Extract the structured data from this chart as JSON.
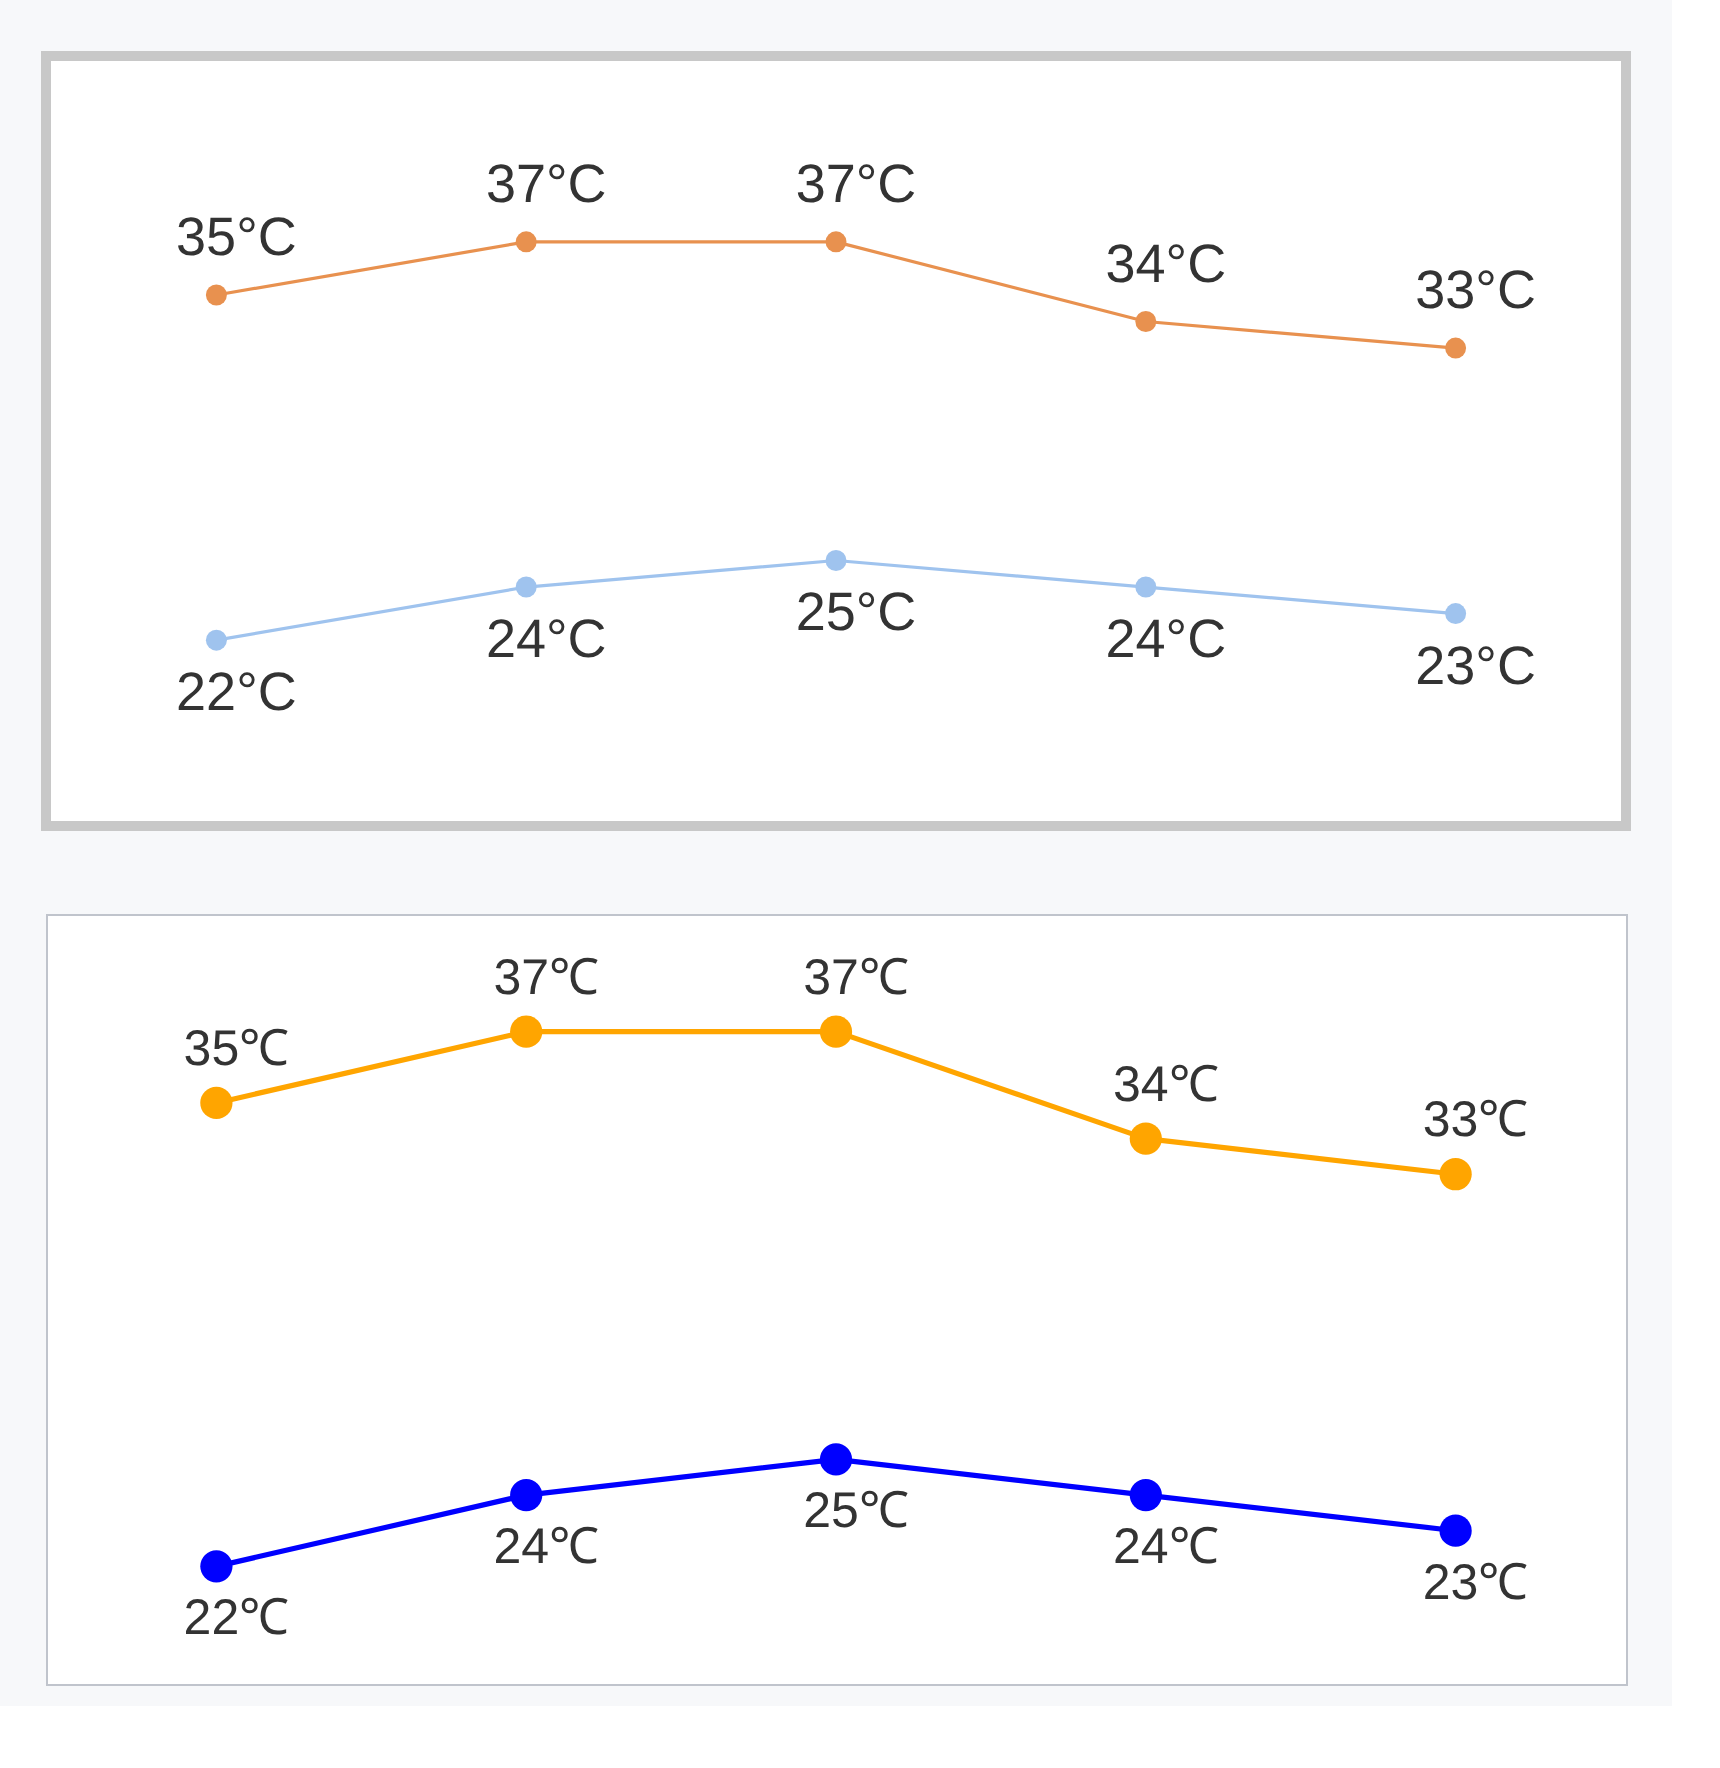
{
  "chart_data": [
    {
      "type": "line",
      "categories": [
        null,
        null,
        null,
        null,
        null
      ],
      "marker": "circle",
      "line_style": "solid",
      "grid": false,
      "tick_labels": false,
      "data_labels": true,
      "series": [
        {
          "color": "#e8914f",
          "values": [
            35,
            37,
            37,
            34,
            33
          ],
          "value_labels": [
            "35°C",
            "37°C",
            "37°C",
            "34°C",
            "33°C"
          ]
        },
        {
          "color": "#9fc3ee",
          "values": [
            22,
            24,
            25,
            24,
            23
          ],
          "value_labels": [
            "22°C",
            "24°C",
            "25°C",
            "24°C",
            "23°C"
          ]
        }
      ]
    },
    {
      "type": "line",
      "categories": [
        null,
        null,
        null,
        null,
        null
      ],
      "marker": "circle",
      "line_style": "solid",
      "grid": false,
      "tick_labels": false,
      "data_labels": true,
      "series": [
        {
          "color": "#ffa500",
          "values": [
            35,
            37,
            37,
            34,
            33
          ],
          "value_labels": [
            "35℃",
            "37℃",
            "37℃",
            "34℃",
            "33℃"
          ]
        },
        {
          "color": "#0000ff",
          "values": [
            22,
            24,
            25,
            24,
            23
          ],
          "value_labels": [
            "22℃",
            "24℃",
            "25℃",
            "24℃",
            "23℃"
          ]
        }
      ]
    }
  ]
}
